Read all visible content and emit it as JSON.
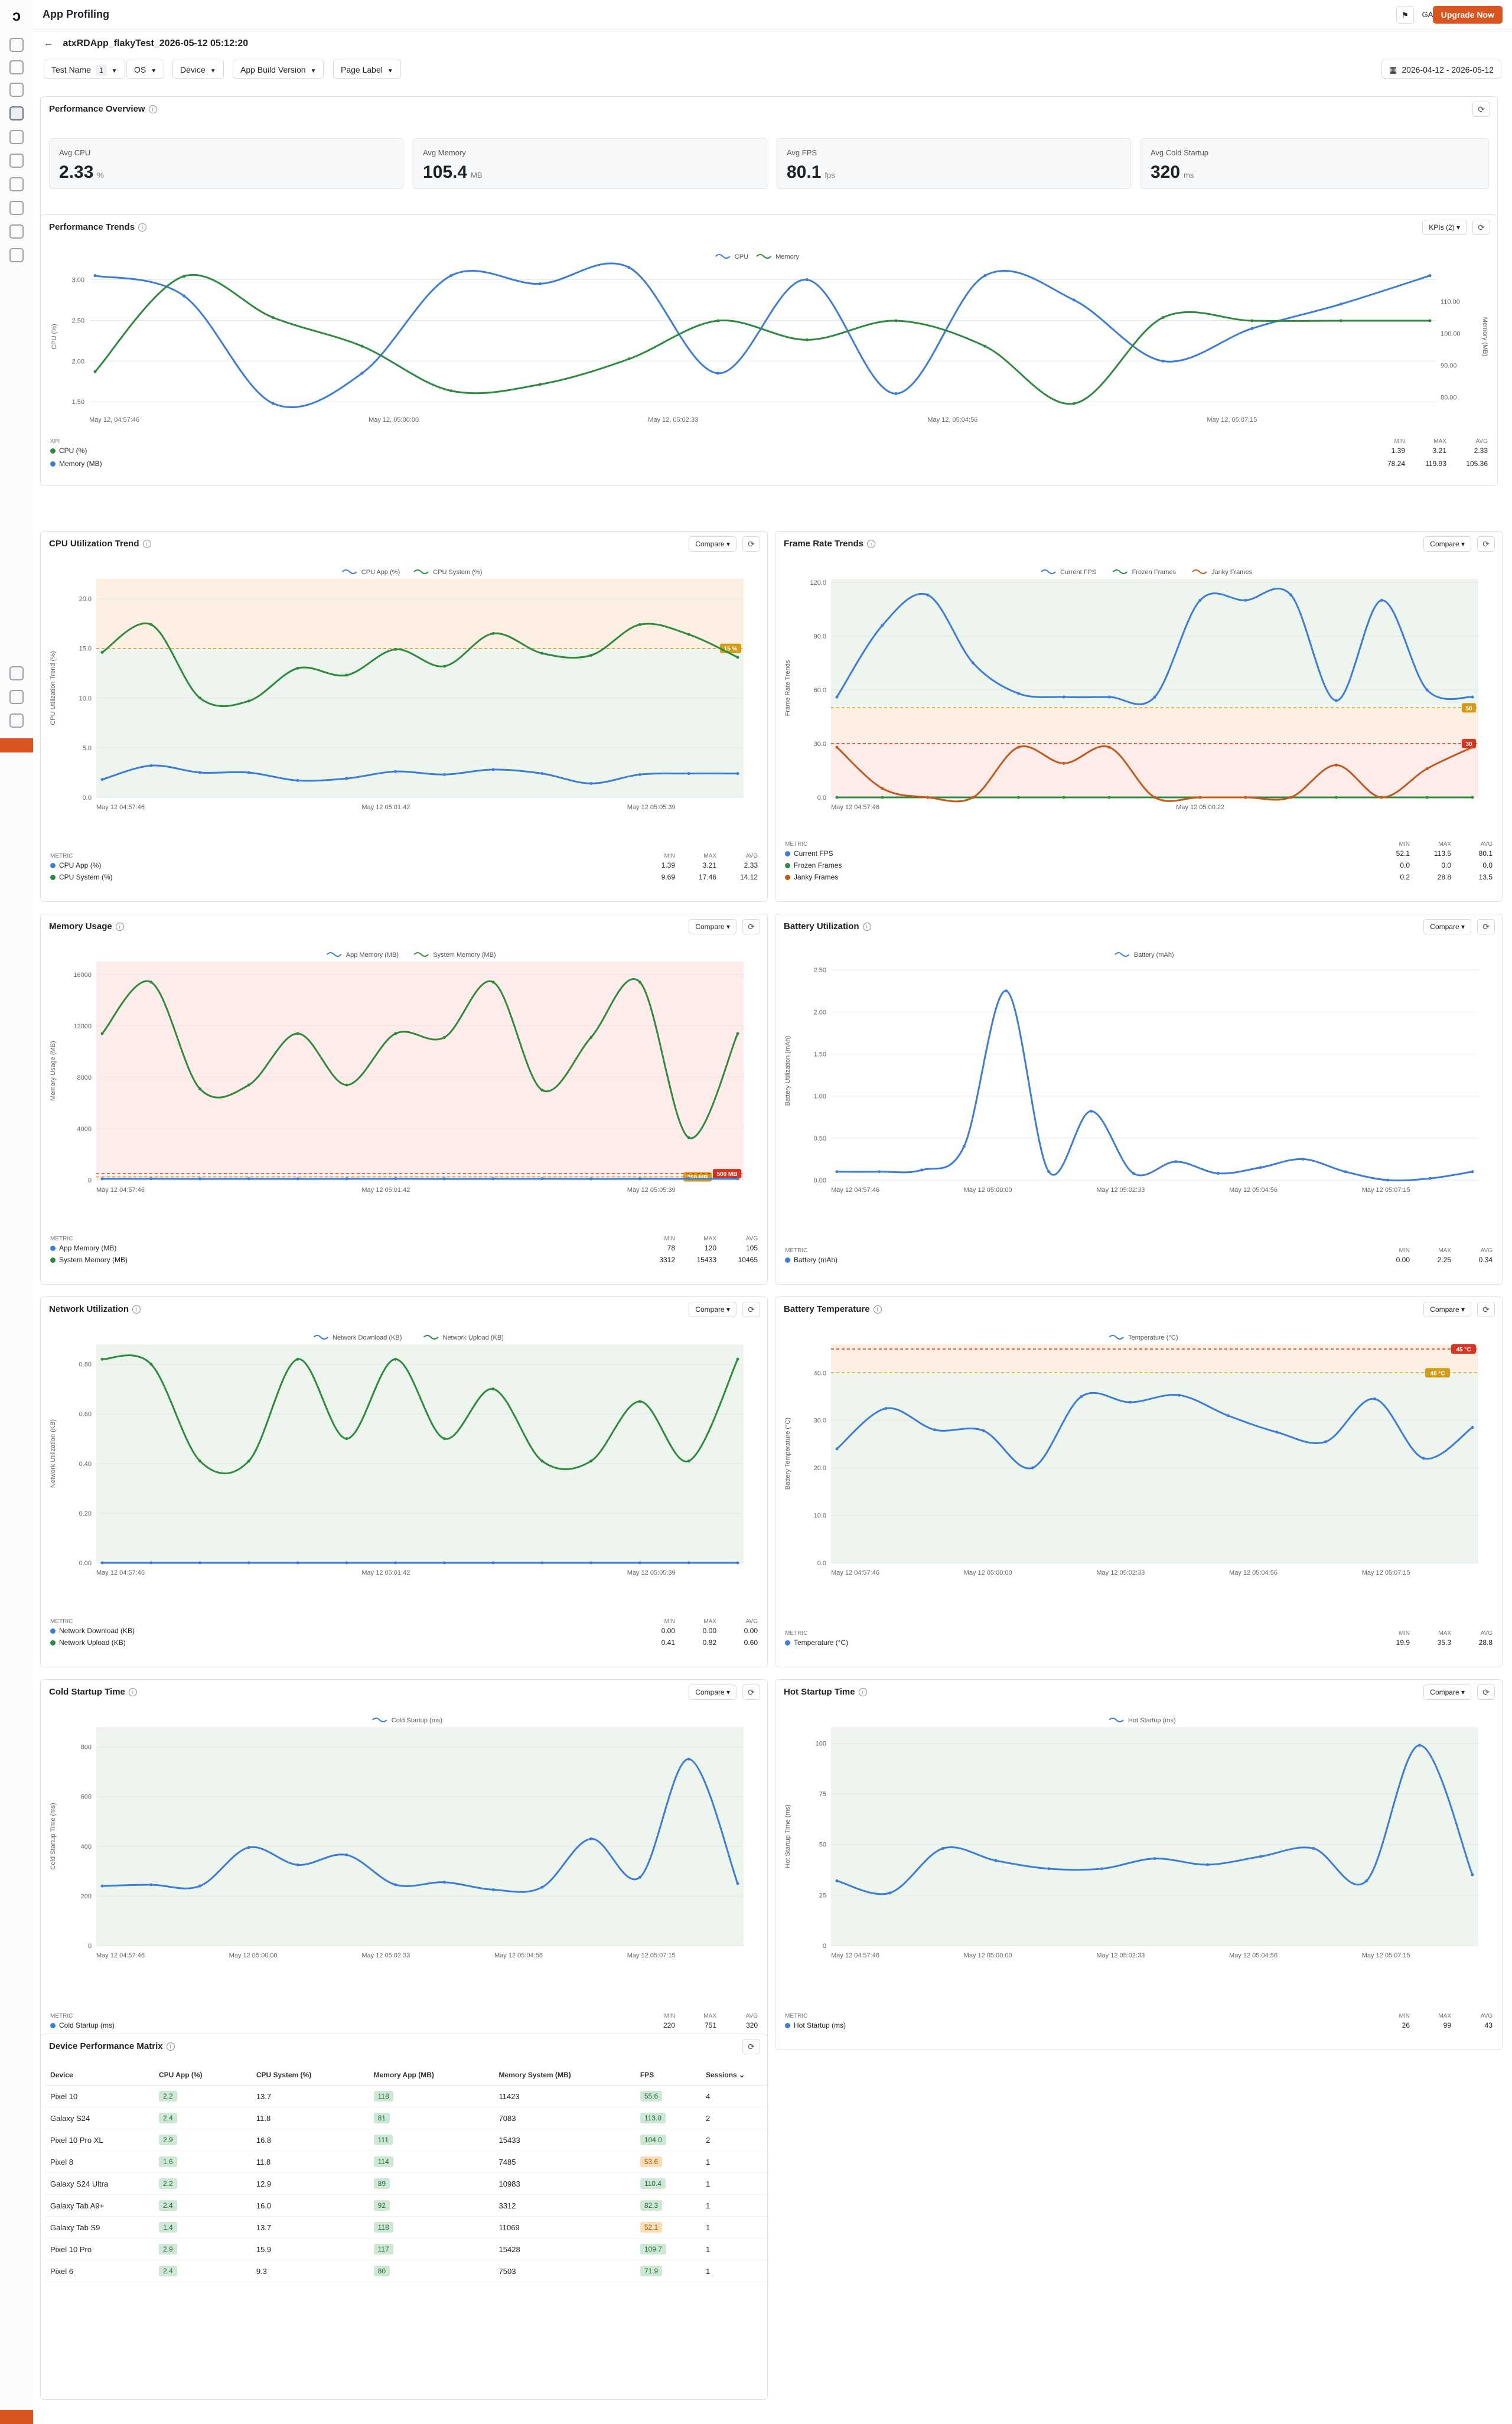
{
  "app": {
    "title": "App Profiling",
    "upgrade_label": "Upgrade Now",
    "user_initials": "GA"
  },
  "test": {
    "name": "atxRDApp_flakyTest_2026-05-12 05:12:20"
  },
  "filters": [
    {
      "label": "Test Name",
      "badge": "1"
    },
    {
      "label": "OS",
      "badge": ""
    },
    {
      "label": "Device",
      "badge": ""
    },
    {
      "label": "App Build Version",
      "badge": ""
    },
    {
      "label": "Page Label",
      "badge": ""
    }
  ],
  "date_range": "2026-04-12 - 2026-05-12",
  "overview": {
    "title": "Performance Overview",
    "kpis": [
      {
        "label": "Avg CPU",
        "value": "2.33",
        "unit": "%"
      },
      {
        "label": "Avg Memory",
        "value": "105.4",
        "unit": "MB"
      },
      {
        "label": "Avg FPS",
        "value": "80.1",
        "unit": "fps"
      },
      {
        "label": "Avg Cold Startup",
        "value": "320",
        "unit": "ms"
      }
    ]
  },
  "trends": {
    "title": "Performance Trends",
    "kpi_button": "KPIs (2)",
    "stats_header": [
      "KPI",
      "MIN",
      "MAX",
      "AVG"
    ],
    "rows": [
      {
        "name": "CPU (%)",
        "min": "1.39",
        "max": "3.21",
        "avg": "2.33"
      },
      {
        "name": "Memory (MB)",
        "min": "78.24",
        "max": "119.93",
        "avg": "105.36"
      }
    ]
  },
  "compare_label": "Compare",
  "metric_header": [
    "METRIC",
    "MIN",
    "MAX",
    "AVG"
  ],
  "panels": {
    "cpu": {
      "title": "CPU Utilization Trend",
      "rows": [
        {
          "name": "CPU App (%)",
          "min": "1.39",
          "max": "3.21",
          "avg": "2.33"
        },
        {
          "name": "CPU System (%)",
          "min": "9.69",
          "max": "17.46",
          "avg": "14.12"
        }
      ]
    },
    "fps": {
      "title": "Frame Rate Trends",
      "rows": [
        {
          "name": "Current FPS",
          "min": "52.1",
          "max": "113.5",
          "avg": "80.1"
        },
        {
          "name": "Frozen Frames",
          "min": "0.0",
          "max": "0.0",
          "avg": "0.0"
        },
        {
          "name": "Janky Frames",
          "min": "0.2",
          "max": "28.8",
          "avg": "13.5"
        }
      ]
    },
    "mem": {
      "title": "Memory Usage",
      "rows": [
        {
          "name": "App Memory (MB)",
          "min": "78",
          "max": "120",
          "avg": "105"
        },
        {
          "name": "System Memory (MB)",
          "min": "3312",
          "max": "15433",
          "avg": "10465"
        }
      ]
    },
    "battery": {
      "title": "Battery Utilization",
      "rows": [
        {
          "name": "Battery (mAh)",
          "min": "0.00",
          "max": "2.25",
          "avg": "0.34"
        }
      ]
    },
    "net": {
      "title": "Network Utilization",
      "rows": [
        {
          "name": "Network Download (KB)",
          "min": "0.00",
          "max": "0.00",
          "avg": "0.00"
        },
        {
          "name": "Network Upload (KB)",
          "min": "0.41",
          "max": "0.82",
          "avg": "0.60"
        }
      ]
    },
    "temp": {
      "title": "Battery Temperature",
      "rows": [
        {
          "name": "Temperature (°C)",
          "min": "19.9",
          "max": "35.3",
          "avg": "28.8"
        }
      ]
    },
    "cold": {
      "title": "Cold Startup Time",
      "rows": [
        {
          "name": "Cold Startup (ms)",
          "min": "220",
          "max": "751",
          "avg": "320"
        }
      ]
    },
    "hot": {
      "title": "Hot Startup Time",
      "rows": [
        {
          "name": "Hot Startup (ms)",
          "min": "26",
          "max": "99",
          "avg": "43"
        }
      ]
    }
  },
  "matrix": {
    "title": "Device Performance Matrix",
    "columns": [
      "Device",
      "CPU App (%)",
      "CPU System (%)",
      "Memory App (MB)",
      "Memory System (MB)",
      "FPS",
      "Sessions ⌄"
    ],
    "rows": [
      [
        "Pixel 10",
        "2.2",
        "13.7",
        "118",
        "11423",
        "55.6",
        "4"
      ],
      [
        "Galaxy S24",
        "2.4",
        "11.8",
        "81",
        "7083",
        "113.0",
        "2"
      ],
      [
        "Pixel 10 Pro XL",
        "2.9",
        "16.8",
        "111",
        "15433",
        "104.0",
        "2"
      ],
      [
        "Pixel 8",
        "1.6",
        "11.8",
        "114",
        "7485",
        "53.6",
        "1"
      ],
      [
        "Galaxy S24 Ultra",
        "2.2",
        "12.9",
        "89",
        "10983",
        "110.4",
        "1"
      ],
      [
        "Galaxy Tab A9+",
        "2.4",
        "16.0",
        "92",
        "3312",
        "82.3",
        "1"
      ],
      [
        "Galaxy Tab S9",
        "1.4",
        "13.7",
        "118",
        "11069",
        "52.1",
        "1"
      ],
      [
        "Pixel 10 Pro",
        "2.9",
        "15.9",
        "117",
        "15428",
        "109.7",
        "1"
      ],
      [
        "Pixel 6",
        "2.4",
        "9.3",
        "80",
        "7503",
        "71.9",
        "1"
      ]
    ],
    "fps_warn": [
      false,
      false,
      false,
      true,
      false,
      false,
      true,
      false,
      false
    ]
  },
  "chart_data": [
    {
      "id": "trends",
      "type": "line",
      "title": "Performance Trends",
      "ylabel": "CPU (%)",
      "y2label": "Memory (MB)",
      "xticks": [
        "May 12, 04:57:46",
        "May 12, 05:00:00",
        "May 12, 05:02:33",
        "May 12, 05:04:56",
        "May 12, 05:07:15"
      ],
      "ylim": [
        1.4,
        3.2
      ],
      "yticks": [
        "3.00",
        "2.50",
        "2.00",
        "1.50"
      ],
      "ytick_vals": [
        3.0,
        2.5,
        2.0,
        1.5
      ],
      "y2lim": [
        76,
        122
      ],
      "y2ticks": [
        "110.00",
        "100.00",
        "90.00",
        "80.00"
      ],
      "y2tick_vals": [
        110,
        100,
        90,
        80
      ],
      "series": [
        {
          "name": "CPU",
          "color": "#3b7dd8",
          "axis": "left",
          "values": [
            3.05,
            2.8,
            1.48,
            1.85,
            3.05,
            2.95,
            3.15,
            1.85,
            3.0,
            1.6,
            3.05,
            2.75,
            2.0,
            2.4,
            2.7,
            3.05
          ]
        },
        {
          "name": "Memory",
          "color": "#2e8a3e",
          "axis": "right",
          "values": [
            88,
            118,
            105,
            96,
            82,
            84,
            92,
            104,
            98,
            104,
            96,
            78,
            105,
            104,
            104,
            104
          ]
        }
      ]
    },
    {
      "id": "cpu",
      "type": "line",
      "xticks": [
        "May 12 04:57:46",
        "May 12 05:01:42",
        "May 12 05:05:39"
      ],
      "ylabel": "CPU Utilization Trend (%)",
      "ylim": [
        0,
        22
      ],
      "yticks": [
        "20.0",
        "15.0",
        "10.0",
        "5.0",
        "0.0"
      ],
      "ytick_vals": [
        20,
        15,
        10,
        5,
        0
      ],
      "threshold": {
        "value": 15,
        "label": "15 %",
        "color": "#d39b17"
      },
      "series": [
        {
          "name": "CPU App (%)",
          "color": "#3b7dd8",
          "values": [
            1.8,
            3.2,
            2.5,
            2.5,
            1.7,
            1.9,
            2.6,
            2.3,
            2.8,
            2.4,
            1.4,
            2.3,
            2.4,
            2.4
          ]
        },
        {
          "name": "CPU System (%)",
          "color": "#2e8a3e",
          "values": [
            14.6,
            17.4,
            10.0,
            9.7,
            13.0,
            12.3,
            14.9,
            13.2,
            16.5,
            14.5,
            14.3,
            17.4,
            16.4,
            14.1
          ]
        }
      ]
    },
    {
      "id": "fps",
      "type": "line",
      "xticks": [
        "May 12 04:57:46",
        "May 12 05:00:22"
      ],
      "ylabel": "Frame Rate Trends",
      "ylim": [
        0,
        122
      ],
      "yticks": [
        "120.0",
        "90.0",
        "60.0",
        "30.0",
        "0.0"
      ],
      "ytick_vals": [
        120,
        90,
        60,
        30,
        0
      ],
      "threshold": {
        "value": 50,
        "label": "50",
        "color": "#d39b17"
      },
      "threshold2": {
        "value": 30,
        "label": "30",
        "color": "#d9321e"
      },
      "series": [
        {
          "name": "Current FPS",
          "color": "#3b7dd8",
          "values": [
            56,
            96,
            113,
            75,
            58,
            56,
            56,
            56,
            110,
            110,
            113,
            54,
            110,
            60,
            56
          ]
        },
        {
          "name": "Frozen Frames",
          "color": "#2e8a3e",
          "values": [
            0,
            0,
            0,
            0,
            0,
            0,
            0,
            0,
            0,
            0,
            0,
            0,
            0,
            0,
            0
          ]
        },
        {
          "name": "Janky Frames",
          "color": "#c25a1c",
          "values": [
            28,
            5,
            0,
            0,
            28,
            19,
            28,
            0,
            0,
            0,
            0,
            18,
            0,
            16,
            28
          ]
        }
      ]
    },
    {
      "id": "mem",
      "type": "line",
      "xticks": [
        "May 12 04:57:46",
        "May 12 05:01:42",
        "May 12 05:05:39"
      ],
      "ylabel": "Memory Usage (MB)",
      "ylim": [
        0,
        17000
      ],
      "yticks": [
        "16000",
        "12000",
        "8000",
        "4000",
        "0"
      ],
      "ytick_vals": [
        16000,
        12000,
        8000,
        4000,
        0
      ],
      "threshold": {
        "value": 250,
        "label": "250 MB",
        "color": "#d39b17"
      },
      "threshold2": {
        "value": 500,
        "label": "500 MB",
        "color": "#d9321e"
      },
      "series": [
        {
          "name": "App Memory (MB)",
          "color": "#3b7dd8",
          "values": [
            105,
            110,
            100,
            105,
            100,
            105,
            110,
            100,
            105,
            110,
            100,
            105,
            110,
            105
          ]
        },
        {
          "name": "System Memory (MB)",
          "color": "#2e8a3e",
          "values": [
            11400,
            15400,
            7100,
            7400,
            11400,
            7400,
            11400,
            11100,
            15400,
            7000,
            11100,
            15400,
            3300,
            11400
          ]
        }
      ]
    },
    {
      "id": "battery",
      "type": "line",
      "xticks": [
        "May 12 04:57:46",
        "May 12 05:00:00",
        "May 12 05:02:33",
        "May 12 05:04:56",
        "May 12 05:07:15"
      ],
      "ylabel": "Battery Utilization (mAh)",
      "ylim": [
        0,
        2.6
      ],
      "yticks": [
        "2.50",
        "2.00",
        "1.50",
        "1.00",
        "0.50",
        "0.00"
      ],
      "ytick_vals": [
        2.5,
        2.0,
        1.5,
        1.0,
        0.5,
        0
      ],
      "series": [
        {
          "name": "Battery (mAh)",
          "color": "#3b7dd8",
          "values": [
            0.1,
            0.1,
            0.12,
            0.4,
            2.25,
            0.1,
            0.82,
            0.08,
            0.22,
            0.08,
            0.15,
            0.25,
            0.1,
            0.0,
            0.02,
            0.1
          ]
        }
      ]
    },
    {
      "id": "net",
      "type": "line",
      "xticks": [
        "May 12 04:57:46",
        "May 12 05:01:42",
        "May 12 05:05:39"
      ],
      "ylabel": "Network Utilization (KB)",
      "ylim": [
        0,
        0.88
      ],
      "yticks": [
        "0.80",
        "0.60",
        "0.40",
        "0.20",
        "0.00"
      ],
      "ytick_vals": [
        0.8,
        0.6,
        0.4,
        0.2,
        0
      ],
      "series": [
        {
          "name": "Network Download (KB)",
          "color": "#3b7dd8",
          "values": [
            0,
            0,
            0,
            0,
            0,
            0,
            0,
            0,
            0,
            0,
            0,
            0,
            0,
            0
          ]
        },
        {
          "name": "Network Upload (KB)",
          "color": "#2e8a3e",
          "values": [
            0.82,
            0.8,
            0.41,
            0.41,
            0.82,
            0.5,
            0.82,
            0.5,
            0.7,
            0.41,
            0.41,
            0.65,
            0.41,
            0.82
          ]
        }
      ]
    },
    {
      "id": "temp",
      "type": "line",
      "xticks": [
        "May 12 04:57:46",
        "May 12 05:00:00",
        "May 12 05:02:33",
        "May 12 05:04:56",
        "May 12 05:07:15"
      ],
      "ylabel": "Battery Temperature (°C)",
      "ylim": [
        0,
        46
      ],
      "yticks": [
        "40.0",
        "30.0",
        "20.0",
        "10.0",
        "0.0"
      ],
      "ytick_vals": [
        40,
        30,
        20,
        10,
        0
      ],
      "threshold": {
        "value": 40,
        "label": "40 °C",
        "color": "#d39b17"
      },
      "threshold2": {
        "value": 45,
        "label": "45 °C",
        "color": "#d9321e"
      },
      "series": [
        {
          "name": "Temperature (°C)",
          "color": "#3b7dd8",
          "values": [
            24,
            32.5,
            28,
            27.8,
            20,
            35,
            33.8,
            35.3,
            31,
            27.5,
            25.5,
            34.5,
            22,
            28.5
          ]
        }
      ]
    },
    {
      "id": "cold",
      "type": "line",
      "xticks": [
        "May 12 04:57:46",
        "May 12 05:00:00",
        "May 12 05:02:33",
        "May 12 05:04:56",
        "May 12 05:07:15"
      ],
      "ylabel": "Cold Startup Time (ms)",
      "ylim": [
        0,
        880
      ],
      "yticks": [
        "800",
        "600",
        "400",
        "200",
        "0"
      ],
      "ytick_vals": [
        800,
        600,
        400,
        200,
        0
      ],
      "series": [
        {
          "name": "Cold Startup (ms)",
          "color": "#3b7dd8",
          "values": [
            240,
            245,
            240,
            395,
            325,
            365,
            245,
            255,
            225,
            235,
            430,
            275,
            751,
            250
          ]
        }
      ]
    },
    {
      "id": "hot",
      "type": "line",
      "xticks": [
        "May 12 04:57:46",
        "May 12 05:00:00",
        "May 12 05:02:33",
        "May 12 05:04:56",
        "May 12 05:07:15"
      ],
      "ylabel": "Hot Startup Time (ms)",
      "ylim": [
        0,
        108
      ],
      "yticks": [
        "100",
        "75",
        "50",
        "25",
        "0"
      ],
      "ytick_vals": [
        100,
        75,
        50,
        25,
        0
      ],
      "series": [
        {
          "name": "Hot Startup (ms)",
          "color": "#3b7dd8",
          "values": [
            32,
            26,
            48,
            42,
            38,
            38,
            43,
            40,
            44,
            48,
            32,
            99,
            35
          ]
        }
      ]
    }
  ]
}
